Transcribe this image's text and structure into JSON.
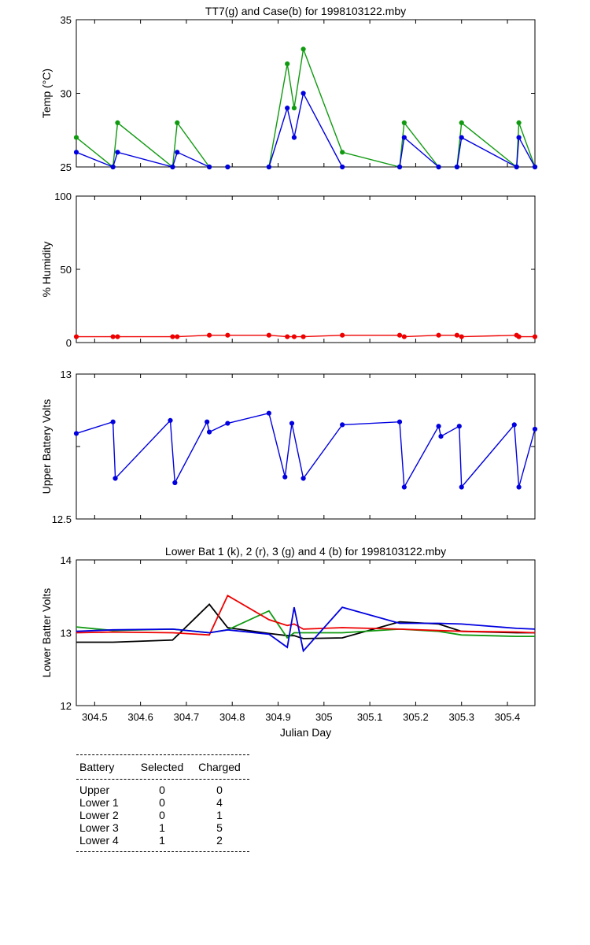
{
  "colors": {
    "green": "#109a10",
    "blue": "#0000e0",
    "red": "#ee0000",
    "black": "#000000"
  },
  "chart_data": [
    {
      "type": "line",
      "title": "TT7(g) and Case(b) for 1998103122.mby",
      "ylabel": "Temp  (°C)",
      "xlabel": "",
      "xlim": [
        304.46,
        305.46
      ],
      "ylim": [
        25,
        35
      ],
      "yticks": [
        "25",
        "30",
        "35"
      ],
      "series": [
        {
          "color": "green",
          "markers": true,
          "segments": [
            [
              [
                304.46,
                27
              ],
              [
                304.54,
                25
              ],
              [
                304.55,
                28
              ],
              [
                304.67,
                25
              ],
              [
                304.68,
                28
              ],
              [
                304.75,
                25
              ]
            ],
            [
              [
                304.79,
                25
              ]
            ],
            [
              [
                304.88,
                25
              ],
              [
                304.92,
                32
              ],
              [
                304.935,
                29
              ],
              [
                304.955,
                33
              ],
              [
                305.04,
                26
              ],
              [
                305.165,
                25
              ],
              [
                305.175,
                28
              ],
              [
                305.25,
                25
              ]
            ],
            [
              [
                305.29,
                25
              ],
              [
                305.3,
                28
              ],
              [
                305.42,
                25
              ],
              [
                305.425,
                28
              ],
              [
                305.46,
                25
              ]
            ]
          ]
        },
        {
          "color": "blue",
          "markers": true,
          "segments": [
            [
              [
                304.46,
                26
              ],
              [
                304.54,
                25
              ],
              [
                304.55,
                26
              ],
              [
                304.67,
                25
              ],
              [
                304.68,
                26
              ],
              [
                304.75,
                25
              ]
            ],
            [
              [
                304.79,
                25
              ]
            ],
            [
              [
                304.88,
                25
              ],
              [
                304.92,
                29
              ],
              [
                304.935,
                27
              ],
              [
                304.955,
                30
              ],
              [
                305.04,
                25
              ]
            ],
            [
              [
                305.165,
                25
              ],
              [
                305.175,
                27
              ],
              [
                305.25,
                25
              ]
            ],
            [
              [
                305.29,
                25
              ],
              [
                305.3,
                27
              ],
              [
                305.42,
                25
              ],
              [
                305.425,
                27
              ],
              [
                305.46,
                25
              ]
            ]
          ]
        }
      ]
    },
    {
      "type": "line",
      "title": "",
      "ylabel": "% Humidity",
      "xlabel": "",
      "xlim": [
        304.46,
        305.46
      ],
      "ylim": [
        0,
        100
      ],
      "yticks": [
        "0",
        "50",
        "100"
      ],
      "series": [
        {
          "color": "red",
          "markers": true,
          "segments": [
            [
              [
                304.46,
                4
              ],
              [
                304.54,
                4
              ],
              [
                304.55,
                4
              ],
              [
                304.67,
                4
              ],
              [
                304.68,
                4
              ],
              [
                304.75,
                5
              ],
              [
                304.79,
                5
              ],
              [
                304.88,
                5
              ],
              [
                304.92,
                4
              ],
              [
                304.935,
                4
              ],
              [
                304.955,
                4
              ],
              [
                305.04,
                5
              ],
              [
                305.165,
                5
              ],
              [
                305.175,
                4
              ],
              [
                305.25,
                5
              ],
              [
                305.29,
                5
              ],
              [
                305.3,
                4
              ],
              [
                305.42,
                5
              ],
              [
                305.425,
                4
              ],
              [
                305.46,
                4
              ]
            ]
          ]
        }
      ]
    },
    {
      "type": "line",
      "title": "",
      "ylabel": "Upper Battery Volts",
      "xlabel": "",
      "xlim": [
        304.46,
        305.46
      ],
      "ylim": [
        12.5,
        13
      ],
      "yticks": [
        "12.5",
        "",
        "13"
      ],
      "series": [
        {
          "color": "blue",
          "markers": true,
          "segments": [
            [
              [
                304.46,
                12.795
              ],
              [
                304.54,
                12.835
              ],
              [
                304.545,
                12.64
              ],
              [
                304.665,
                12.84
              ],
              [
                304.675,
                12.625
              ],
              [
                304.745,
                12.835
              ],
              [
                304.75,
                12.8
              ],
              [
                304.79,
                12.83
              ],
              [
                304.88,
                12.865
              ],
              [
                304.915,
                12.645
              ],
              [
                304.93,
                12.83
              ],
              [
                304.955,
                12.64
              ],
              [
                305.04,
                12.825
              ],
              [
                305.165,
                12.835
              ],
              [
                305.175,
                12.61
              ],
              [
                305.25,
                12.82
              ],
              [
                305.255,
                12.785
              ],
              [
                305.295,
                12.82
              ],
              [
                305.3,
                12.61
              ],
              [
                305.415,
                12.825
              ],
              [
                305.425,
                12.61
              ],
              [
                305.46,
                12.81
              ]
            ]
          ]
        }
      ]
    },
    {
      "type": "line",
      "title": "Lower Bat 1 (k), 2 (r), 3 (g) and 4 (b) for 1998103122.mby",
      "ylabel": "Lower Batter Volts",
      "xlabel": "Julian Day",
      "xlim": [
        304.46,
        305.46
      ],
      "ylim": [
        12,
        14
      ],
      "yticks": [
        "12",
        "13",
        "14"
      ],
      "xticks": [
        "304.5",
        "304.6",
        "304.7",
        "304.8",
        "304.9",
        "305",
        "305.1",
        "305.2",
        "305.3",
        "305.4"
      ],
      "series": [
        {
          "color": "black",
          "markers": false,
          "segments": [
            [
              [
                304.46,
                12.87
              ],
              [
                304.54,
                12.87
              ],
              [
                304.67,
                12.9
              ],
              [
                304.75,
                13.39
              ],
              [
                304.79,
                13.07
              ],
              [
                304.88,
                12.99
              ],
              [
                304.92,
                12.96
              ],
              [
                304.935,
                12.96
              ],
              [
                304.955,
                12.92
              ],
              [
                305.04,
                12.93
              ],
              [
                305.165,
                13.15
              ],
              [
                305.25,
                13.12
              ],
              [
                305.3,
                13.02
              ],
              [
                305.42,
                13.0
              ],
              [
                305.46,
                13.0
              ]
            ]
          ]
        },
        {
          "color": "green",
          "markers": false,
          "segments": [
            [
              [
                304.46,
                13.08
              ],
              [
                304.54,
                13.03
              ],
              [
                304.67,
                13.05
              ],
              [
                304.75,
                13.0
              ],
              [
                304.79,
                13.04
              ],
              [
                304.88,
                13.3
              ],
              [
                304.92,
                12.93
              ],
              [
                304.935,
                13.0
              ],
              [
                304.955,
                13.0
              ],
              [
                305.04,
                13.0
              ],
              [
                305.165,
                13.05
              ],
              [
                305.25,
                13.02
              ],
              [
                305.3,
                12.97
              ],
              [
                305.42,
                12.95
              ],
              [
                305.46,
                12.95
              ]
            ]
          ]
        },
        {
          "color": "red",
          "markers": false,
          "segments": [
            [
              [
                304.46,
                13.0
              ],
              [
                304.54,
                13.01
              ],
              [
                304.67,
                13.0
              ],
              [
                304.75,
                12.97
              ],
              [
                304.79,
                13.51
              ],
              [
                304.88,
                13.18
              ],
              [
                304.92,
                13.1
              ],
              [
                304.935,
                13.12
              ],
              [
                304.955,
                13.05
              ],
              [
                305.04,
                13.07
              ],
              [
                305.165,
                13.05
              ],
              [
                305.25,
                13.03
              ],
              [
                305.3,
                13.02
              ],
              [
                305.42,
                13.01
              ],
              [
                305.46,
                13.0
              ]
            ]
          ]
        },
        {
          "color": "blue",
          "markers": false,
          "segments": [
            [
              [
                304.46,
                13.02
              ],
              [
                304.54,
                13.04
              ],
              [
                304.67,
                13.05
              ],
              [
                304.75,
                13.0
              ],
              [
                304.79,
                13.04
              ],
              [
                304.88,
                12.98
              ],
              [
                304.92,
                12.8
              ],
              [
                304.935,
                13.35
              ],
              [
                304.955,
                12.75
              ],
              [
                305.04,
                13.35
              ],
              [
                305.165,
                13.13
              ],
              [
                305.25,
                13.13
              ],
              [
                305.3,
                13.12
              ],
              [
                305.42,
                13.06
              ],
              [
                305.46,
                13.05
              ]
            ]
          ]
        }
      ]
    }
  ],
  "battery_table": {
    "headers": [
      "Battery",
      "Selected",
      "Charged"
    ],
    "rows": [
      [
        "Upper",
        "0",
        "0"
      ],
      [
        "Lower 1",
        "0",
        "4"
      ],
      [
        "Lower 2",
        "0",
        "1"
      ],
      [
        "Lower 3",
        "1",
        "5"
      ],
      [
        "Lower 4",
        "1",
        "2"
      ]
    ]
  }
}
